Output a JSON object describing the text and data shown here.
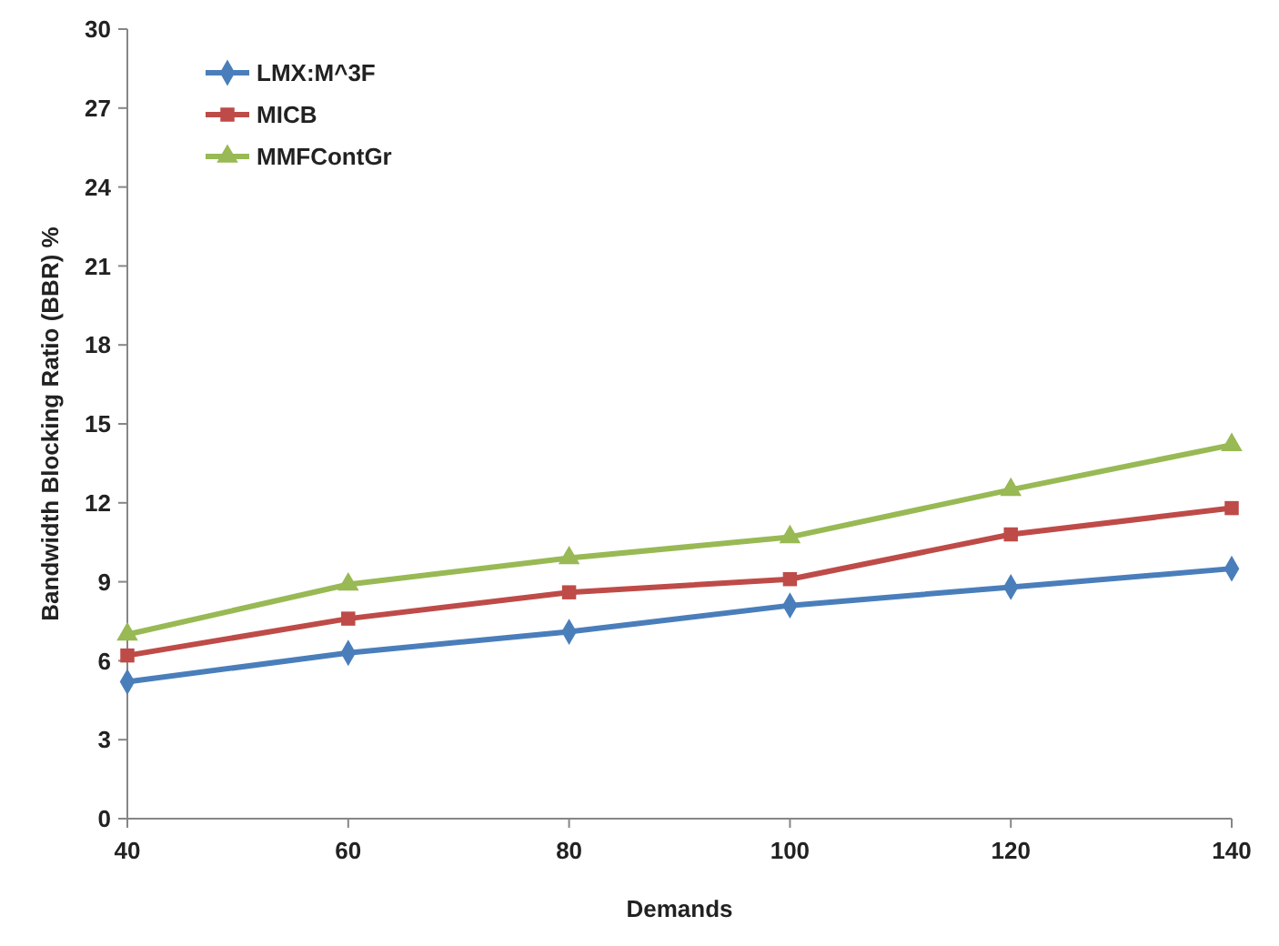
{
  "chart_data": {
    "type": "line",
    "xlabel": "Demands",
    "ylabel": "Bandwidth Blocking Ratio (BBR) %",
    "x": [
      40,
      60,
      80,
      100,
      120,
      140
    ],
    "xlim": [
      40,
      140
    ],
    "xticks": [
      40,
      60,
      80,
      100,
      120,
      140
    ],
    "ylim": [
      0,
      30
    ],
    "yticks": [
      0,
      3,
      6,
      9,
      12,
      15,
      18,
      21,
      24,
      27,
      30
    ],
    "grid": false,
    "legend": "top left",
    "series": [
      {
        "name": "LMX:M^3F",
        "color": "#4a7ebb",
        "marker": "diamond",
        "values": [
          5.2,
          6.3,
          7.1,
          8.1,
          8.8,
          9.5
        ]
      },
      {
        "name": "MICB",
        "color": "#be4b48",
        "marker": "square",
        "values": [
          6.2,
          7.6,
          8.6,
          9.1,
          10.8,
          11.8
        ]
      },
      {
        "name": "MMFContGr",
        "color": "#98b954",
        "marker": "triangle",
        "values": [
          7.0,
          8.9,
          9.9,
          10.7,
          12.5,
          14.2
        ]
      }
    ]
  }
}
